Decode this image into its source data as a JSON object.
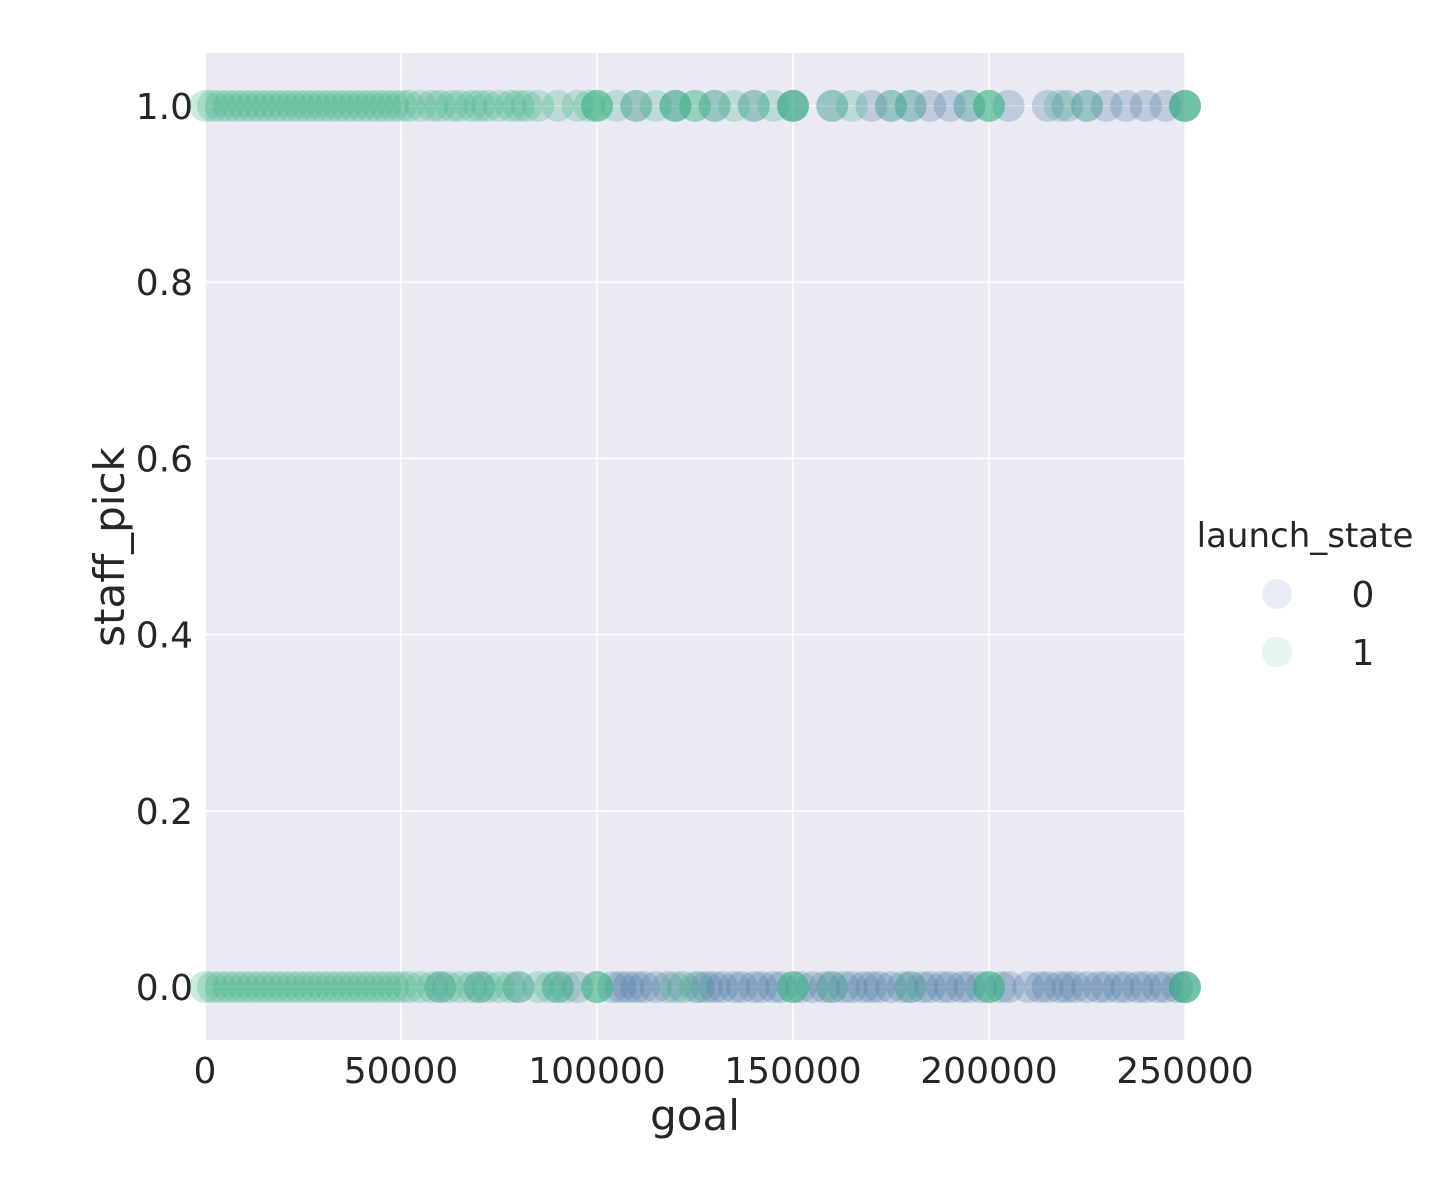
{
  "chart_data": {
    "type": "scatter",
    "xlabel": "goal",
    "ylabel": "staff_pick",
    "xlim": [
      0,
      250000
    ],
    "ylim": [
      -0.06,
      1.06
    ],
    "xticks": [
      0,
      50000,
      100000,
      150000,
      200000,
      250000
    ],
    "xtick_labels": [
      "0",
      "50000",
      "100000",
      "150000",
      "200000",
      "250000"
    ],
    "yticks": [
      0.0,
      0.2,
      0.4,
      0.6,
      0.8,
      1.0
    ],
    "ytick_labels": [
      "0.0",
      "0.2",
      "0.4",
      "0.6",
      "0.8",
      "1.0"
    ],
    "grid": true,
    "legend": {
      "title": "launch_state",
      "placement": "right",
      "entries": [
        {
          "label": "0",
          "color": "#3b6e9c"
        },
        {
          "label": "1",
          "color": "#30b07c"
        }
      ]
    },
    "series": [
      {
        "launch_state": "0",
        "color": "#3b6e9c",
        "opacity": 0.25,
        "points": [
          [
            104000,
            0
          ],
          [
            106000,
            0
          ],
          [
            108000,
            0
          ],
          [
            110000,
            0
          ],
          [
            112000,
            0
          ],
          [
            115000,
            0
          ],
          [
            118000,
            0
          ],
          [
            122000,
            0
          ],
          [
            126000,
            0
          ],
          [
            128000,
            0
          ],
          [
            130000,
            0
          ],
          [
            132000,
            0
          ],
          [
            135000,
            0
          ],
          [
            137000,
            0
          ],
          [
            140000,
            0
          ],
          [
            142000,
            0
          ],
          [
            145000,
            0
          ],
          [
            147000,
            0
          ],
          [
            152000,
            0
          ],
          [
            155000,
            0
          ],
          [
            158000,
            0
          ],
          [
            160000,
            0
          ],
          [
            163000,
            0
          ],
          [
            165000,
            0
          ],
          [
            168000,
            0
          ],
          [
            170000,
            0
          ],
          [
            172000,
            0
          ],
          [
            175000,
            0
          ],
          [
            178000,
            0
          ],
          [
            180000,
            0
          ],
          [
            183000,
            0
          ],
          [
            185000,
            0
          ],
          [
            188000,
            0
          ],
          [
            190000,
            0
          ],
          [
            193000,
            0
          ],
          [
            195000,
            0
          ],
          [
            198000,
            0
          ],
          [
            203000,
            0
          ],
          [
            205000,
            0
          ],
          [
            210000,
            0
          ],
          [
            213000,
            0
          ],
          [
            215000,
            0
          ],
          [
            218000,
            0
          ],
          [
            220000,
            0
          ],
          [
            222000,
            0
          ],
          [
            225000,
            0
          ],
          [
            228000,
            0
          ],
          [
            230000,
            0
          ],
          [
            233000,
            0
          ],
          [
            235000,
            0
          ],
          [
            238000,
            0
          ],
          [
            240000,
            0
          ],
          [
            243000,
            0
          ],
          [
            245000,
            0
          ],
          [
            248000,
            0
          ],
          [
            250000,
            0
          ],
          [
            60000,
            0
          ],
          [
            70000,
            0
          ],
          [
            80000,
            0
          ],
          [
            90000,
            0
          ],
          [
            95000,
            0
          ],
          [
            110000,
            1
          ],
          [
            120000,
            1
          ],
          [
            130000,
            1
          ],
          [
            140000,
            1
          ],
          [
            150000,
            1
          ],
          [
            160000,
            1
          ],
          [
            170000,
            1
          ],
          [
            175000,
            1
          ],
          [
            180000,
            1
          ],
          [
            185000,
            1
          ],
          [
            190000,
            1
          ],
          [
            195000,
            1
          ],
          [
            205000,
            1
          ],
          [
            215000,
            1
          ],
          [
            220000,
            1
          ],
          [
            225000,
            1
          ],
          [
            230000,
            1
          ],
          [
            235000,
            1
          ],
          [
            240000,
            1
          ],
          [
            245000,
            1
          ],
          [
            250000,
            1
          ]
        ]
      },
      {
        "launch_state": "1",
        "color": "#30b07c",
        "opacity": 0.25,
        "points": [
          [
            0,
            0
          ],
          [
            2000,
            0
          ],
          [
            4000,
            0
          ],
          [
            6000,
            0
          ],
          [
            8000,
            0
          ],
          [
            10000,
            0
          ],
          [
            12000,
            0
          ],
          [
            14000,
            0
          ],
          [
            16000,
            0
          ],
          [
            18000,
            0
          ],
          [
            20000,
            0
          ],
          [
            22000,
            0
          ],
          [
            24000,
            0
          ],
          [
            26000,
            0
          ],
          [
            28000,
            0
          ],
          [
            30000,
            0
          ],
          [
            32000,
            0
          ],
          [
            34000,
            0
          ],
          [
            36000,
            0
          ],
          [
            38000,
            0
          ],
          [
            40000,
            0
          ],
          [
            42000,
            0
          ],
          [
            44000,
            0
          ],
          [
            46000,
            0
          ],
          [
            48000,
            0
          ],
          [
            50000,
            0
          ],
          [
            52000,
            0
          ],
          [
            55000,
            0
          ],
          [
            58000,
            0
          ],
          [
            60000,
            0
          ],
          [
            62000,
            0
          ],
          [
            65000,
            0
          ],
          [
            68000,
            0
          ],
          [
            70000,
            0
          ],
          [
            72000,
            0
          ],
          [
            75000,
            0
          ],
          [
            78000,
            0
          ],
          [
            80000,
            0
          ],
          [
            85000,
            0
          ],
          [
            88000,
            0
          ],
          [
            90000,
            0
          ],
          [
            92000,
            0
          ],
          [
            100000,
            0
          ],
          [
            100000,
            0
          ],
          [
            100000,
            0
          ],
          [
            120000,
            0
          ],
          [
            125000,
            0
          ],
          [
            150000,
            0
          ],
          [
            150000,
            0
          ],
          [
            150000,
            0
          ],
          [
            160000,
            0
          ],
          [
            180000,
            0
          ],
          [
            200000,
            0
          ],
          [
            200000,
            0
          ],
          [
            200000,
            0
          ],
          [
            250000,
            0
          ],
          [
            250000,
            0
          ],
          [
            250000,
            0
          ],
          [
            0,
            1
          ],
          [
            2000,
            1
          ],
          [
            4000,
            1
          ],
          [
            6000,
            1
          ],
          [
            8000,
            1
          ],
          [
            10000,
            1
          ],
          [
            12000,
            1
          ],
          [
            14000,
            1
          ],
          [
            16000,
            1
          ],
          [
            18000,
            1
          ],
          [
            20000,
            1
          ],
          [
            22000,
            1
          ],
          [
            24000,
            1
          ],
          [
            26000,
            1
          ],
          [
            28000,
            1
          ],
          [
            30000,
            1
          ],
          [
            32000,
            1
          ],
          [
            34000,
            1
          ],
          [
            36000,
            1
          ],
          [
            38000,
            1
          ],
          [
            40000,
            1
          ],
          [
            42000,
            1
          ],
          [
            44000,
            1
          ],
          [
            46000,
            1
          ],
          [
            48000,
            1
          ],
          [
            50000,
            1
          ],
          [
            52000,
            1
          ],
          [
            55000,
            1
          ],
          [
            58000,
            1
          ],
          [
            60000,
            1
          ],
          [
            63000,
            1
          ],
          [
            65000,
            1
          ],
          [
            68000,
            1
          ],
          [
            70000,
            1
          ],
          [
            72000,
            1
          ],
          [
            75000,
            1
          ],
          [
            78000,
            1
          ],
          [
            80000,
            1
          ],
          [
            82000,
            1
          ],
          [
            85000,
            1
          ],
          [
            90000,
            1
          ],
          [
            95000,
            1
          ],
          [
            98000,
            1
          ],
          [
            100000,
            1
          ],
          [
            100000,
            1
          ],
          [
            100000,
            1
          ],
          [
            105000,
            1
          ],
          [
            110000,
            1
          ],
          [
            115000,
            1
          ],
          [
            120000,
            1
          ],
          [
            120000,
            1
          ],
          [
            125000,
            1
          ],
          [
            125000,
            1
          ],
          [
            130000,
            1
          ],
          [
            135000,
            1
          ],
          [
            140000,
            1
          ],
          [
            145000,
            1
          ],
          [
            150000,
            1
          ],
          [
            150000,
            1
          ],
          [
            150000,
            1
          ],
          [
            160000,
            1
          ],
          [
            165000,
            1
          ],
          [
            175000,
            1
          ],
          [
            180000,
            1
          ],
          [
            195000,
            1
          ],
          [
            200000,
            1
          ],
          [
            200000,
            1
          ],
          [
            200000,
            1
          ],
          [
            218000,
            1
          ],
          [
            225000,
            1
          ],
          [
            250000,
            1
          ],
          [
            250000,
            1
          ],
          [
            250000,
            1
          ]
        ]
      }
    ]
  }
}
